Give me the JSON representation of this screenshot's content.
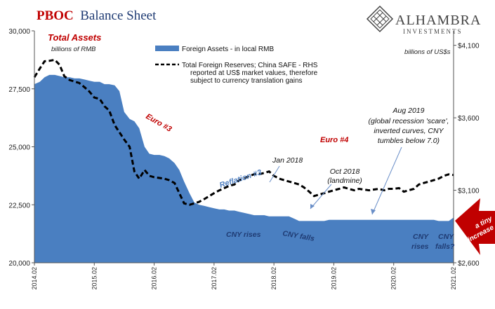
{
  "title": {
    "part1": "PBOC",
    "part2": "Balance Sheet"
  },
  "logo": {
    "name": "ALHAMBRA",
    "sub": "INVESTMENTS",
    "icon": "diamond-lattice-icon"
  },
  "left_axis_heading": "Total Assets",
  "left_axis_unit": "billions of RMB",
  "right_axis_unit": "billions of US$s",
  "legend": {
    "area_label": "Foreign Assets - in local RMB",
    "line_label_lines": [
      "Total Foreign Reserves; China SAFE - RHS",
      "reported at US$ market values, therefore",
      "subject to currency translation gains"
    ]
  },
  "annotations": {
    "euro3": "Euro #3",
    "euro4": "Euro #4",
    "reflation3": "Reflation #3",
    "jan2018": "Jan 2018",
    "oct2018": [
      "Oct 2018",
      "(landmine)"
    ],
    "aug2019": [
      "Aug 2019",
      "(global recession 'scare',",
      "inverted curves, CNY",
      "tumbles below 7.0)"
    ],
    "cny_rises_1": "CNY rises",
    "cny_falls_1": "CNY falls",
    "cny_rises_2": [
      "CNY",
      "rises"
    ],
    "cny_falls_2": [
      "CNY",
      "falls?"
    ],
    "tiny_increase": [
      "a tiny",
      "increase"
    ]
  },
  "colors": {
    "area": "#4a7fc1",
    "line": "#000000",
    "title_red": "#c00000",
    "title_blue": "#1f3b73",
    "arrow_red": "#c00000"
  },
  "chart_data": {
    "type": "area",
    "x_tick_labels": [
      "2014.02",
      "2015.02",
      "2016.02",
      "2017.02",
      "2018.02",
      "2019.02",
      "2020.02",
      "2021.02"
    ],
    "left_ticks": [
      "20,000",
      "22,500",
      "25,000",
      "27,500",
      "30,000"
    ],
    "right_ticks": [
      "$2,600",
      "$3,100",
      "$3,600",
      "$4,100"
    ],
    "left_ylim": [
      20000,
      30000
    ],
    "right_ylim": [
      2600,
      4200
    ],
    "x": [
      2014.08,
      2014.17,
      2014.25,
      2014.33,
      2014.42,
      2014.5,
      2014.58,
      2014.67,
      2014.75,
      2014.83,
      2014.92,
      2015.0,
      2015.08,
      2015.17,
      2015.25,
      2015.33,
      2015.42,
      2015.5,
      2015.58,
      2015.67,
      2015.75,
      2015.83,
      2015.92,
      2016.0,
      2016.08,
      2016.17,
      2016.25,
      2016.33,
      2016.42,
      2016.5,
      2016.58,
      2016.67,
      2016.75,
      2016.83,
      2016.92,
      2017.0,
      2017.08,
      2017.17,
      2017.25,
      2017.33,
      2017.42,
      2017.5,
      2017.58,
      2017.67,
      2017.75,
      2017.83,
      2017.92,
      2018.0,
      2018.08,
      2018.17,
      2018.25,
      2018.33,
      2018.42,
      2018.5,
      2018.58,
      2018.67,
      2018.75,
      2018.83,
      2018.92,
      2019.0,
      2019.08,
      2019.17,
      2019.25,
      2019.33,
      2019.42,
      2019.5,
      2019.58,
      2019.67,
      2019.75,
      2019.83,
      2019.92,
      2020.0,
      2020.08,
      2020.17,
      2020.25,
      2020.33,
      2020.42,
      2020.5,
      2020.58,
      2020.67,
      2020.75,
      2020.83,
      2020.92,
      2021.0,
      2021.08
    ],
    "series": [
      {
        "name": "Foreign Assets - in local RMB",
        "axis": "left",
        "style": "area",
        "values": [
          27700,
          27800,
          28000,
          28100,
          28100,
          28050,
          28000,
          28000,
          27950,
          27950,
          27900,
          27850,
          27800,
          27800,
          27700,
          27700,
          27650,
          27400,
          26500,
          26200,
          26100,
          25800,
          25000,
          24700,
          24650,
          24650,
          24600,
          24500,
          24300,
          24000,
          23500,
          23000,
          22600,
          22500,
          22450,
          22400,
          22350,
          22300,
          22300,
          22250,
          22250,
          22200,
          22150,
          22100,
          22050,
          22050,
          22050,
          22000,
          22000,
          22000,
          22000,
          22000,
          21900,
          21800,
          21800,
          21800,
          21800,
          21800,
          21800,
          21850,
          21850,
          21850,
          21850,
          21850,
          21850,
          21850,
          21850,
          21850,
          21850,
          21850,
          21850,
          21850,
          21850,
          21850,
          21850,
          21850,
          21850,
          21850,
          21850,
          21850,
          21850,
          21800,
          21800,
          21800,
          21950
        ]
      },
      {
        "name": "Total Foreign Reserves; China SAFE - RHS",
        "axis": "right",
        "style": "dashed-line",
        "values": [
          3880,
          3940,
          3990,
          3993,
          4000,
          3966,
          3887,
          3860,
          3850,
          3840,
          3810,
          3780,
          3740,
          3730,
          3680,
          3650,
          3550,
          3500,
          3450,
          3400,
          3230,
          3180,
          3240,
          3200,
          3190,
          3185,
          3180,
          3170,
          3150,
          3080,
          3010,
          3000,
          3010,
          3020,
          3040,
          3060,
          3080,
          3100,
          3115,
          3130,
          3140,
          3170,
          3180,
          3200,
          3210,
          3210,
          3220,
          3230,
          3200,
          3180,
          3170,
          3160,
          3150,
          3140,
          3120,
          3090,
          3060,
          3070,
          3080,
          3090,
          3100,
          3110,
          3120,
          3110,
          3100,
          3110,
          3105,
          3100,
          3105,
          3110,
          3100,
          3110,
          3110,
          3115,
          3090,
          3100,
          3110,
          3140,
          3150,
          3160,
          3170,
          3180,
          3200,
          3210,
          3205
        ]
      }
    ]
  }
}
